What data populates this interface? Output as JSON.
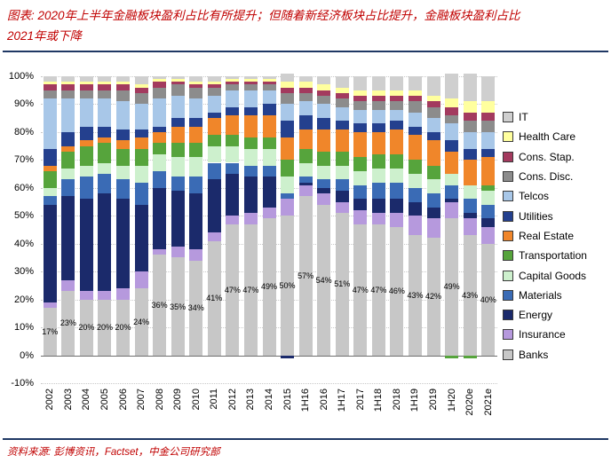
{
  "title": {
    "line1": "图表: 2020年上半年金融板块盈利占比有所提升；但随着新经济板块占比提升，金融板块盈利占比",
    "line2": "2021年或下降"
  },
  "source": "资料来源: 彭博资讯，Factset，中金公司研究部",
  "colors": {
    "title_text": "#c00000",
    "divider": "#1f3864"
  },
  "chart_data": {
    "type": "bar",
    "stacked": true,
    "normalized_percent": true,
    "ylim": [
      -10,
      100
    ],
    "grid": true,
    "legend_position": "right",
    "y_ticks": [
      "100%",
      "90%",
      "80%",
      "70%",
      "60%",
      "50%",
      "40%",
      "30%",
      "20%",
      "10%",
      "0%",
      "-10%"
    ],
    "categories": [
      "2002",
      "2003",
      "2004",
      "2005",
      "2006",
      "2007",
      "2008",
      "2009",
      "2010",
      "2011",
      "2012",
      "2013",
      "2014",
      "2015",
      "1H16",
      "2016",
      "1H17",
      "2017",
      "1H18",
      "2018",
      "1H19",
      "2019",
      "1H20",
      "2020e",
      "2021e"
    ],
    "series": [
      {
        "name": "Banks",
        "color": "#c7c7c7",
        "values": [
          17,
          23,
          20,
          20,
          20,
          24,
          36,
          35,
          34,
          41,
          47,
          47,
          49,
          50,
          57,
          54,
          51,
          47,
          47,
          46,
          43,
          42,
          49,
          43,
          40
        ]
      },
      {
        "name": "Insurance",
        "color": "#b699dd",
        "values": [
          2,
          4,
          3,
          3,
          4,
          6,
          2,
          4,
          4,
          3,
          3,
          4,
          4,
          6,
          4,
          4,
          4,
          5,
          4,
          5,
          7,
          7,
          6,
          6,
          6
        ]
      },
      {
        "name": "Energy",
        "color": "#1b2a6b",
        "values": [
          35,
          30,
          33,
          35,
          32,
          24,
          22,
          20,
          20,
          19,
          15,
          13,
          11,
          -1,
          1,
          2,
          4,
          4,
          5,
          5,
          5,
          4,
          1,
          2,
          3
        ]
      },
      {
        "name": "Materials",
        "color": "#3a6bb5",
        "values": [
          3,
          6,
          8,
          7,
          7,
          8,
          6,
          5,
          6,
          6,
          4,
          4,
          4,
          2,
          2,
          3,
          4,
          5,
          6,
          6,
          5,
          5,
          5,
          5,
          5
        ]
      },
      {
        "name": "Capital Goods",
        "color": "#cdf0cd",
        "values": [
          3,
          4,
          4,
          4,
          5,
          6,
          6,
          7,
          7,
          6,
          6,
          6,
          6,
          6,
          5,
          5,
          5,
          5,
          5,
          5,
          5,
          5,
          4,
          5,
          5
        ]
      },
      {
        "name": "Transportation",
        "color": "#56a43c",
        "values": [
          6,
          6,
          7,
          7,
          6,
          6,
          4,
          5,
          5,
          4,
          4,
          4,
          4,
          6,
          5,
          5,
          5,
          5,
          5,
          5,
          5,
          5,
          -1,
          -1,
          2
        ]
      },
      {
        "name": "Real Estate",
        "color": "#f0862a",
        "values": [
          2,
          2,
          2,
          2,
          3,
          4,
          4,
          6,
          6,
          6,
          7,
          8,
          8,
          8,
          7,
          8,
          8,
          9,
          8,
          9,
          9,
          9,
          8,
          9,
          10
        ]
      },
      {
        "name": "Utilities",
        "color": "#24408e",
        "values": [
          6,
          5,
          5,
          4,
          4,
          3,
          2,
          3,
          3,
          2,
          3,
          3,
          4,
          6,
          5,
          4,
          3,
          3,
          3,
          3,
          3,
          3,
          4,
          4,
          3
        ]
      },
      {
        "name": "Telcos",
        "color": "#a8c7e8",
        "values": [
          18,
          12,
          10,
          10,
          10,
          9,
          10,
          8,
          7,
          6,
          6,
          6,
          5,
          6,
          5,
          5,
          5,
          5,
          5,
          4,
          5,
          5,
          6,
          6,
          6
        ]
      },
      {
        "name": "Cons. Disc.",
        "color": "#8c8c8c",
        "values": [
          3,
          3,
          3,
          3,
          4,
          4,
          4,
          4,
          4,
          3,
          2,
          2,
          2,
          4,
          3,
          3,
          3,
          3,
          3,
          3,
          4,
          4,
          3,
          4,
          4
        ]
      },
      {
        "name": "Cons. Stap.",
        "color": "#a33a5e",
        "values": [
          2,
          2,
          2,
          2,
          2,
          2,
          2,
          1,
          1,
          1,
          1,
          1,
          1,
          2,
          2,
          2,
          2,
          2,
          2,
          2,
          2,
          2,
          3,
          3,
          3
        ]
      },
      {
        "name": "Health Care",
        "color": "#ffff9e",
        "values": [
          1,
          1,
          1,
          1,
          1,
          1,
          1,
          1,
          1,
          1,
          1,
          1,
          1,
          2,
          2,
          2,
          2,
          2,
          2,
          2,
          2,
          2,
          3,
          4,
          4
        ]
      },
      {
        "name": "IT",
        "color": "#cfcfcf",
        "values": [
          2,
          2,
          2,
          2,
          2,
          3,
          1,
          1,
          2,
          2,
          1,
          1,
          1,
          3,
          2,
          3,
          4,
          5,
          5,
          5,
          5,
          7,
          9,
          10,
          9
        ]
      }
    ],
    "bar_labels": {
      "series": "Banks",
      "position": "center-of-banks-segment",
      "values": [
        "17%",
        "23%",
        "20%",
        "20%",
        "20%",
        "24%",
        "36%",
        "35%",
        "34%",
        "41%",
        "47%",
        "47%",
        "49%",
        "50%",
        "57%",
        "54%",
        "51%",
        "47%",
        "47%",
        "46%",
        "43%",
        "42%",
        "49%",
        "43%",
        "40%"
      ]
    },
    "legend_order_top_to_bottom": [
      "IT",
      "Health Care",
      "Cons. Stap.",
      "Cons. Disc.",
      "Telcos",
      "Utilities",
      "Real Estate",
      "Transportation",
      "Capital Goods",
      "Materials",
      "Energy",
      "Insurance",
      "Banks"
    ]
  }
}
